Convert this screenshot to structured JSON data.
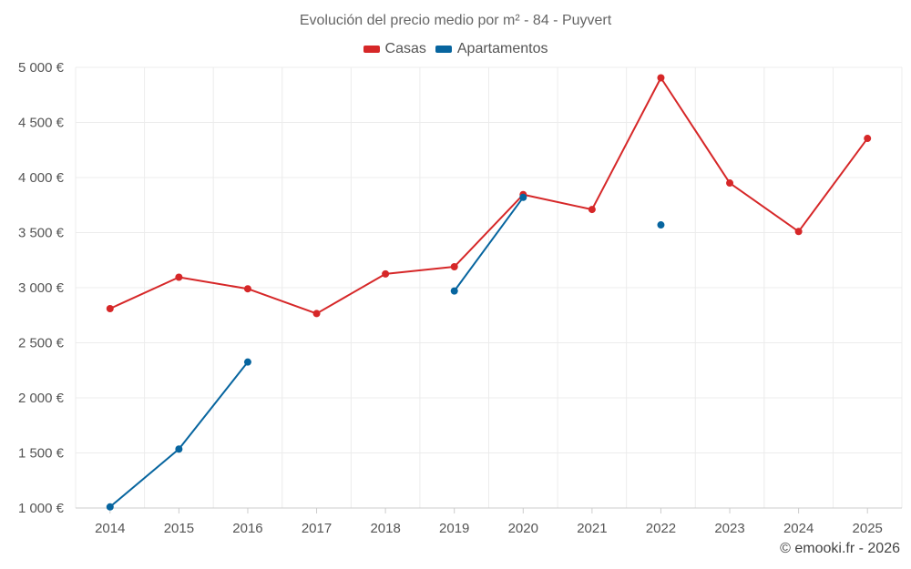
{
  "chart_data": {
    "type": "line",
    "title": "Evolución del precio medio por m² - 84 - Puyvert",
    "xlabel": "",
    "ylabel": "",
    "categories": [
      "2014",
      "2015",
      "2016",
      "2017",
      "2018",
      "2019",
      "2020",
      "2021",
      "2022",
      "2023",
      "2024",
      "2025"
    ],
    "ylim": [
      1000,
      5000
    ],
    "yticks": [
      1000,
      1500,
      2000,
      2500,
      3000,
      3500,
      4000,
      4500,
      5000
    ],
    "ytick_labels": [
      "1 000 €",
      "1 500 €",
      "2 000 €",
      "2 500 €",
      "3 000 €",
      "3 500 €",
      "4 000 €",
      "4 500 €",
      "5 000 €"
    ],
    "grid": true,
    "legend_position": "top-center",
    "series": [
      {
        "name": "Casas",
        "color": "#d62728",
        "values": [
          2810,
          3095,
          2990,
          2765,
          3125,
          3190,
          3845,
          3710,
          4905,
          3950,
          3510,
          4355
        ]
      },
      {
        "name": "Apartamentos",
        "color": "#07659f",
        "values": [
          1010,
          1535,
          2325,
          null,
          null,
          2970,
          3820,
          null,
          3570,
          null,
          null,
          null
        ]
      }
    ]
  },
  "credit": "© emooki.fr - 2026"
}
